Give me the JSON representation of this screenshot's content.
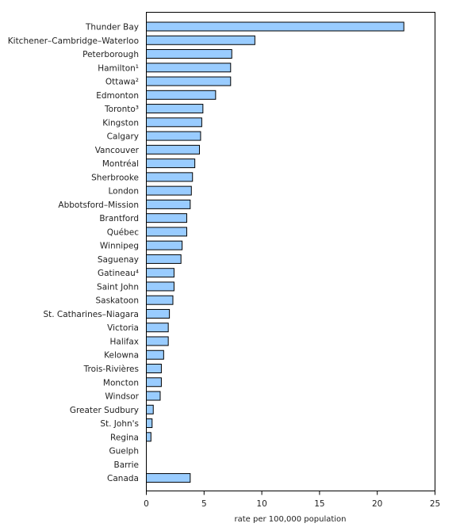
{
  "chart_data": {
    "type": "bar",
    "orientation": "horizontal",
    "title": "",
    "xlabel": "rate per 100,000 population",
    "ylabel": "",
    "xlim": [
      0,
      25
    ],
    "xticks": [
      0,
      5,
      10,
      15,
      20,
      25
    ],
    "grid": false,
    "legend": "none",
    "bar_color": "#99ccff",
    "categories": [
      "Thunder Bay",
      "Kitchener–Cambridge–Waterloo",
      "Peterborough",
      "Hamilton¹",
      "Ottawa²",
      "Edmonton",
      "Toronto³",
      "Kingston",
      "Calgary",
      "Vancouver",
      "Montréal",
      "Sherbrooke",
      "London",
      "Abbotsford–Mission",
      "Brantford",
      "Québec",
      "Winnipeg",
      "Saguenay",
      "Gatineau⁴",
      "Saint John",
      "Saskatoon",
      "St. Catharines–Niagara",
      "Victoria",
      "Halifax",
      "Kelowna",
      "Trois-Rivières",
      "Moncton",
      "Windsor",
      "Greater Sudbury",
      "St. John's",
      "Regina",
      "Guelph",
      "Barrie",
      "Canada"
    ],
    "values": [
      22.3,
      9.4,
      7.4,
      7.3,
      7.3,
      6.0,
      4.9,
      4.8,
      4.7,
      4.6,
      4.2,
      4.0,
      3.9,
      3.8,
      3.5,
      3.5,
      3.1,
      3.0,
      2.4,
      2.4,
      2.3,
      2.0,
      1.9,
      1.9,
      1.5,
      1.3,
      1.3,
      1.2,
      0.6,
      0.5,
      0.4,
      0.0,
      0.0,
      3.8
    ]
  }
}
